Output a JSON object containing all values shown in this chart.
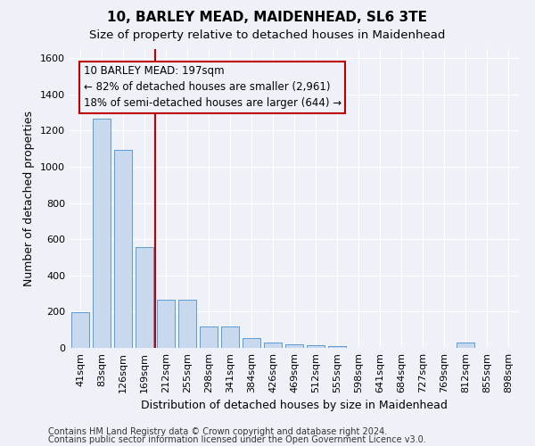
{
  "title1": "10, BARLEY MEAD, MAIDENHEAD, SL6 3TE",
  "title2": "Size of property relative to detached houses in Maidenhead",
  "xlabel": "Distribution of detached houses by size in Maidenhead",
  "ylabel": "Number of detached properties",
  "categories": [
    "41sqm",
    "83sqm",
    "126sqm",
    "169sqm",
    "212sqm",
    "255sqm",
    "298sqm",
    "341sqm",
    "384sqm",
    "426sqm",
    "469sqm",
    "512sqm",
    "555sqm",
    "598sqm",
    "641sqm",
    "684sqm",
    "727sqm",
    "769sqm",
    "812sqm",
    "855sqm",
    "898sqm"
  ],
  "values": [
    195,
    1265,
    1095,
    555,
    265,
    265,
    120,
    120,
    55,
    30,
    20,
    15,
    10,
    0,
    0,
    0,
    0,
    0,
    30,
    0,
    0
  ],
  "bar_color": "#c8d9ee",
  "bar_edge_color": "#5b9bd5",
  "vline_color": "#c00000",
  "annotation_line1": "10 BARLEY MEAD: 197sqm",
  "annotation_line2": "← 82% of detached houses are smaller (2,961)",
  "annotation_line3": "18% of semi-detached houses are larger (644) →",
  "annotation_box_color": "#c00000",
  "ylim": [
    0,
    1650
  ],
  "yticks": [
    0,
    200,
    400,
    600,
    800,
    1000,
    1200,
    1400,
    1600
  ],
  "footer1": "Contains HM Land Registry data © Crown copyright and database right 2024.",
  "footer2": "Contains public sector information licensed under the Open Government Licence v3.0.",
  "bg_color": "#eef2f8",
  "grid_color": "#ffffff",
  "title1_fontsize": 11,
  "title2_fontsize": 9.5,
  "xlabel_fontsize": 9,
  "ylabel_fontsize": 9,
  "tick_fontsize": 8,
  "footer_fontsize": 7,
  "ann_fontsize": 8.5
}
